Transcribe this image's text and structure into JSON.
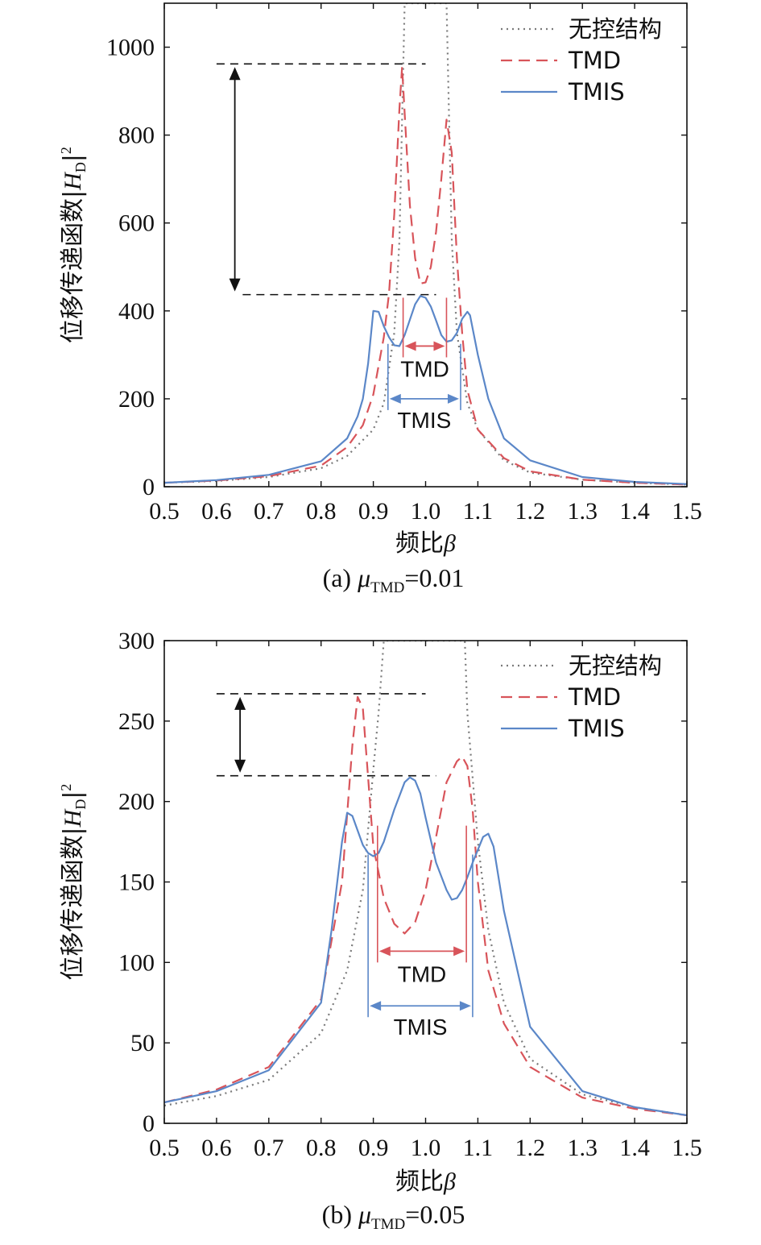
{
  "legend": {
    "uncontrolled": "无控结构",
    "tmd": "TMD",
    "tmis": "TMIS"
  },
  "colors": {
    "uncontrolled": "#7a7a7a",
    "tmd": "#d8545a",
    "tmis": "#5b87c8",
    "arrow": "#111111",
    "axis": "#111111"
  },
  "chart_data": [
    {
      "type": "line",
      "caption_prefix": "(a) ",
      "mu_symbol": "μ",
      "mu_subscript": "TMD",
      "mu_value": "=0.01",
      "xlabel": "频比",
      "xlabel_symbol": "β",
      "ylabel": "位移传递函数|",
      "ylabel_symbol": "H",
      "ylabel_sub": "D",
      "ylabel_close": "|",
      "ylabel_sup": "2",
      "xlim": [
        0.5,
        1.5
      ],
      "ylim": [
        0,
        1100
      ],
      "xticks": [
        "0.5",
        "0.6",
        "0.7",
        "0.8",
        "0.9",
        "1.0",
        "1.1",
        "1.2",
        "1.3",
        "1.4",
        "1.5"
      ],
      "yticks": [
        "0",
        "200",
        "400",
        "600",
        "800",
        "1000"
      ],
      "series": [
        {
          "name": "无控结构",
          "key": "uncontrolled",
          "x": [
            0.5,
            0.6,
            0.7,
            0.8,
            0.85,
            0.9,
            0.92,
            0.94,
            0.95,
            0.96,
            1.04,
            1.05,
            1.06,
            1.08,
            1.1,
            1.15,
            1.2,
            1.3,
            1.4,
            1.5
          ],
          "y": [
            9,
            13,
            22,
            42,
            70,
            130,
            190,
            350,
            560,
            1100,
            1100,
            560,
            350,
            190,
            130,
            60,
            32,
            16,
            9,
            5
          ]
        },
        {
          "name": "TMD",
          "key": "tmd",
          "x": [
            0.5,
            0.6,
            0.7,
            0.8,
            0.85,
            0.88,
            0.9,
            0.92,
            0.93,
            0.94,
            0.95,
            0.955,
            0.96,
            0.97,
            0.98,
            0.99,
            1.0,
            1.01,
            1.02,
            1.03,
            1.04,
            1.05,
            1.06,
            1.07,
            1.08,
            1.1,
            1.15,
            1.2,
            1.3,
            1.4,
            1.5
          ],
          "y": [
            9,
            14,
            24,
            48,
            90,
            140,
            210,
            340,
            440,
            620,
            860,
            955,
            850,
            640,
            520,
            462,
            465,
            500,
            580,
            700,
            835,
            760,
            520,
            350,
            220,
            130,
            65,
            35,
            16,
            9,
            5
          ]
        },
        {
          "name": "TMIS",
          "key": "tmis",
          "x": [
            0.5,
            0.6,
            0.7,
            0.8,
            0.85,
            0.87,
            0.88,
            0.89,
            0.9,
            0.91,
            0.92,
            0.93,
            0.94,
            0.95,
            0.96,
            0.97,
            0.98,
            0.99,
            1.0,
            1.01,
            1.02,
            1.03,
            1.04,
            1.05,
            1.06,
            1.07,
            1.08,
            1.085,
            1.09,
            1.1,
            1.12,
            1.15,
            1.2,
            1.3,
            1.4,
            1.5
          ],
          "y": [
            9,
            15,
            27,
            58,
            110,
            160,
            200,
            280,
            400,
            398,
            365,
            340,
            322,
            320,
            345,
            380,
            415,
            434,
            430,
            410,
            378,
            345,
            330,
            333,
            350,
            382,
            398,
            390,
            360,
            300,
            200,
            110,
            60,
            22,
            11,
            6
          ]
        }
      ],
      "arrow_top": 962,
      "arrow_bottom": 437,
      "dline_top_x": [
        0.6,
        1.0
      ],
      "dline_bottom_x": [
        0.65,
        1.02
      ],
      "arrow_x": 0.635,
      "tmd_band": {
        "label": "TMD",
        "x": [
          0.957,
          1.04
        ],
        "y_top": 430,
        "y_arrow": 320
      },
      "tmis_band": {
        "label": "TMIS",
        "x": [
          0.928,
          1.067
        ],
        "y_top": 325,
        "y_arrow": 200
      }
    },
    {
      "type": "line",
      "caption_prefix": "(b) ",
      "mu_symbol": "μ",
      "mu_subscript": "TMD",
      "mu_value": "=0.05",
      "xlabel": "频比",
      "xlabel_symbol": "β",
      "ylabel": "位移传递函数|",
      "ylabel_symbol": "H",
      "ylabel_sub": "D",
      "ylabel_close": "|",
      "ylabel_sup": "2",
      "xlim": [
        0.5,
        1.5
      ],
      "ylim": [
        0,
        300
      ],
      "xticks": [
        "0.5",
        "0.6",
        "0.7",
        "0.8",
        "0.9",
        "1.0",
        "1.1",
        "1.2",
        "1.3",
        "1.4",
        "1.5"
      ],
      "yticks": [
        "0",
        "50",
        "100",
        "150",
        "200",
        "250",
        "300"
      ],
      "series": [
        {
          "name": "无控结构",
          "key": "uncontrolled",
          "x": [
            0.5,
            0.6,
            0.7,
            0.8,
            0.85,
            0.88,
            0.9,
            0.91,
            0.92,
            0.925,
            1.075,
            1.08,
            1.1,
            1.12,
            1.15,
            1.2,
            1.3,
            1.4,
            1.5
          ],
          "y": [
            11,
            17,
            27,
            56,
            95,
            145,
            220,
            255,
            300,
            300,
            300,
            255,
            175,
            120,
            75,
            40,
            18,
            10,
            5
          ]
        },
        {
          "name": "TMD",
          "key": "tmd",
          "x": [
            0.5,
            0.6,
            0.7,
            0.8,
            0.84,
            0.86,
            0.87,
            0.88,
            0.89,
            0.9,
            0.92,
            0.94,
            0.96,
            0.98,
            1.0,
            1.02,
            1.04,
            1.06,
            1.07,
            1.08,
            1.09,
            1.1,
            1.12,
            1.15,
            1.2,
            1.3,
            1.4,
            1.5
          ],
          "y": [
            13,
            21,
            35,
            77,
            150,
            235,
            265,
            258,
            215,
            172,
            140,
            124,
            118,
            125,
            145,
            178,
            212,
            225,
            228,
            222,
            195,
            150,
            95,
            62,
            35,
            16,
            9,
            5
          ]
        },
        {
          "name": "TMIS",
          "key": "tmis",
          "x": [
            0.5,
            0.6,
            0.7,
            0.8,
            0.82,
            0.84,
            0.85,
            0.86,
            0.87,
            0.88,
            0.89,
            0.9,
            0.91,
            0.92,
            0.94,
            0.96,
            0.97,
            0.98,
            0.99,
            1.0,
            1.02,
            1.04,
            1.05,
            1.06,
            1.07,
            1.08,
            1.09,
            1.1,
            1.11,
            1.12,
            1.13,
            1.15,
            1.2,
            1.3,
            1.4,
            1.5
          ],
          "y": [
            13,
            20,
            33,
            75,
            120,
            175,
            193,
            191,
            182,
            173,
            168,
            166,
            168,
            175,
            195,
            212,
            215,
            213,
            205,
            190,
            162,
            145,
            139,
            140,
            145,
            153,
            162,
            170,
            178,
            180,
            172,
            132,
            60,
            20,
            10,
            5
          ]
        }
      ],
      "arrow_top": 267,
      "arrow_bottom": 216,
      "dline_top_x": [
        0.6,
        1.0
      ],
      "dline_bottom_x": [
        0.6,
        1.02
      ],
      "arrow_x": 0.645,
      "tmd_band": {
        "label": "TMD",
        "x": [
          0.908,
          1.078
        ],
        "y_top": 185,
        "y_arrow": 107
      },
      "tmis_band": {
        "label": "TMIS",
        "x": [
          0.89,
          1.09
        ],
        "y_top": 167,
        "y_arrow": 73
      }
    }
  ]
}
